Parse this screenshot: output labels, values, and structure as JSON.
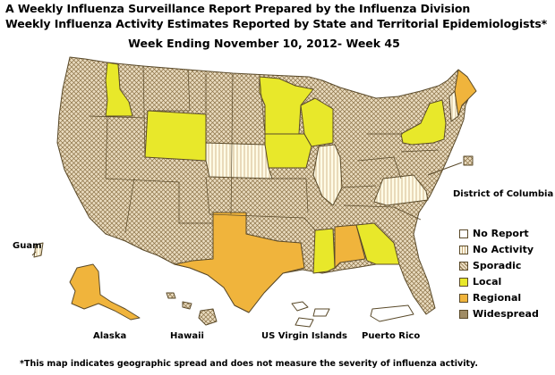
{
  "header": {
    "title_line1": "A Weekly Influenza Surveillance Report Prepared by the Influenza Division",
    "title_line2": "Weekly Influenza Activity Estimates Reported by State and Territorial Epidemiologists*",
    "subtitle": "Week Ending November 10, 2012- Week 45"
  },
  "labels": {
    "district_of_columbia": "District of Columbia",
    "guam": "Guam",
    "alaska": "Alaska",
    "hawaii": "Hawaii",
    "virgin_islands": "US Virgin Islands",
    "puerto_rico": "Puerto Rico"
  },
  "legend": [
    {
      "label": "No Report",
      "level": "no_report"
    },
    {
      "label": "No Activity",
      "level": "no_activity"
    },
    {
      "label": "Sporadic",
      "level": "sporadic"
    },
    {
      "label": "Local",
      "level": "local"
    },
    {
      "label": "Regional",
      "level": "regional"
    },
    {
      "label": "Widespread",
      "level": "widespread"
    }
  ],
  "colors": {
    "no_report": "#ffffff",
    "no_activity": "#fffbe6",
    "no_activity_stripe": "#c8a878",
    "sporadic": "#eadcc0",
    "sporadic_hatch": "#8a7045",
    "local": "#e8e82a",
    "regional": "#f0b43c",
    "widespread": "#a08c64",
    "border": "#5a4a2a"
  },
  "activity_by_state": {
    "Idaho": "local",
    "Wyoming": "local",
    "Minnesota": "local",
    "Iowa": "local",
    "Wisconsin": "local",
    "New York": "local",
    "Mississippi": "local",
    "Georgia": "local",
    "Texas": "regional",
    "Alabama": "regional",
    "Maine": "regional",
    "Alaska": "regional",
    "Nebraska": "no_activity",
    "Illinois": "no_activity",
    "Virginia": "no_activity",
    "New Hampshire": "no_activity",
    "Guam": "no_activity",
    "US Virgin Islands": "no_report",
    "Puerto Rico": "no_report"
  },
  "footnote": "*This map indicates geographic spread and does not measure the severity of influenza activity."
}
